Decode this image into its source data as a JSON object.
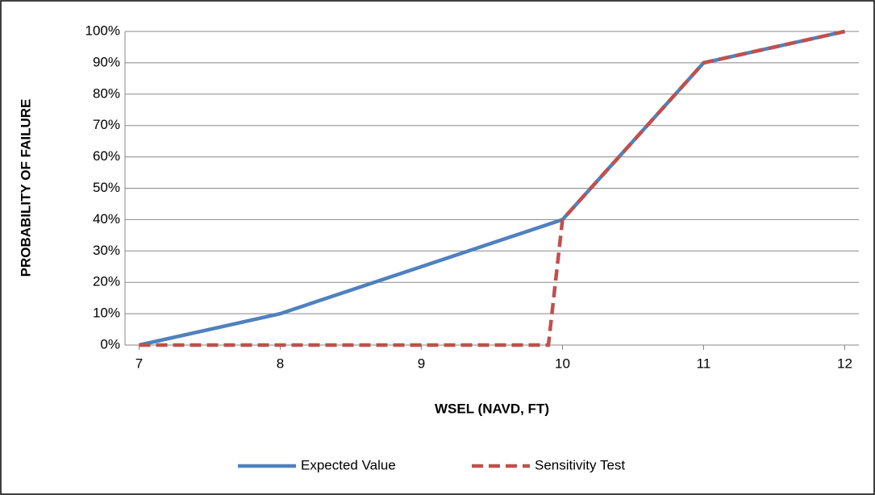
{
  "chart_data": {
    "type": "line",
    "x_label": "WSEL (NAVD, FT)",
    "y_label": "PROBABILITY OF FAILURE",
    "series": [
      {
        "name": "Expected Value",
        "color": "#4f81bd",
        "dashed": false,
        "x": [
          7,
          8,
          10,
          11,
          12
        ],
        "values": [
          0,
          10,
          40,
          90,
          100
        ]
      },
      {
        "name": "Sensitivity Test",
        "color": "#c0504d",
        "dashed": true,
        "x": [
          7,
          9.9,
          10,
          11,
          12
        ],
        "values": [
          0,
          0,
          40,
          90,
          100
        ]
      }
    ],
    "xlim": [
      6.9,
      12.1
    ],
    "xticks": [
      7,
      8,
      9,
      10,
      11,
      12
    ],
    "ylim": [
      0,
      100
    ],
    "yticks": [
      {
        "value": 0,
        "label": "0%"
      },
      {
        "value": 10,
        "label": "10%"
      },
      {
        "value": 20,
        "label": "20%"
      },
      {
        "value": 30,
        "label": "30%"
      },
      {
        "value": 40,
        "label": "40%"
      },
      {
        "value": 50,
        "label": "50%"
      },
      {
        "value": 60,
        "label": "60%"
      },
      {
        "value": 70,
        "label": "70%"
      },
      {
        "value": 80,
        "label": "80%"
      },
      {
        "value": 90,
        "label": "90%"
      },
      {
        "value": 100,
        "label": "100%"
      }
    ],
    "grid": true,
    "legend": "bottom"
  }
}
